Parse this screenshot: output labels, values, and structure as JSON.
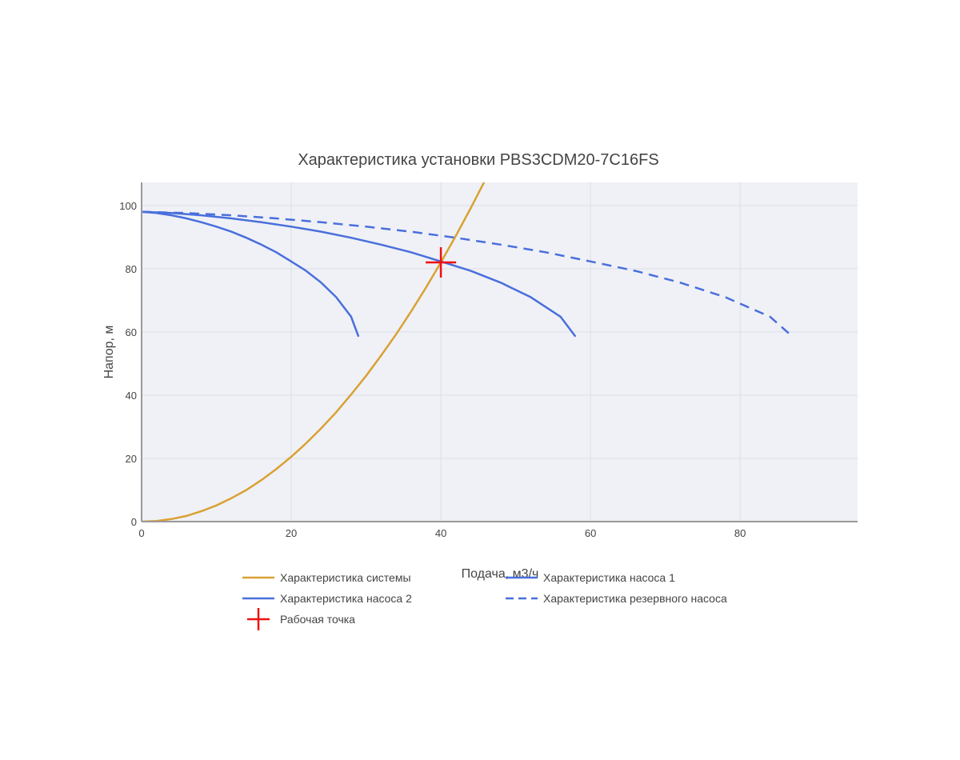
{
  "chart_data": {
    "type": "line",
    "title": "Характеристика установки PBS3CDM20-7C16FS",
    "xlabel": "Подача, м3/ч",
    "ylabel": "Напор, м",
    "xlim": [
      0,
      95.7
    ],
    "ylim": [
      0,
      107.3
    ],
    "xticks": [
      0,
      20,
      40,
      60,
      80
    ],
    "yticks": [
      0,
      20,
      40,
      60,
      80,
      100
    ],
    "grid": true,
    "legend_position": "bottom",
    "series": [
      {
        "name": "Характеристика системы",
        "color": "#DAA133",
        "dash": "solid",
        "x": [
          0,
          2,
          4,
          6,
          8,
          10,
          12,
          14,
          16,
          18,
          20,
          22,
          24,
          26,
          28,
          30,
          32,
          34,
          36,
          38,
          40,
          42,
          44,
          46
        ],
        "y": [
          0,
          0.2,
          0.8,
          1.8,
          3.3,
          5.1,
          7.4,
          10,
          13.1,
          16.6,
          20.5,
          24.8,
          29.5,
          34.6,
          40.2,
          46.1,
          52.5,
          59.2,
          66.4,
          74,
          82,
          90.4,
          99.2,
          108.4
        ]
      },
      {
        "name": "Характеристика насоса 1",
        "color": "#4A6FDC",
        "dash": "solid",
        "x": [
          0,
          2,
          4,
          6,
          8,
          10,
          12,
          14,
          16,
          18,
          20,
          22,
          24,
          26,
          28,
          29
        ],
        "y": [
          98,
          97.6,
          96.9,
          95.9,
          94.7,
          93.3,
          91.7,
          89.8,
          87.6,
          85.2,
          82.3,
          79.3,
          75.6,
          71,
          64.8,
          58.5
        ]
      },
      {
        "name": "Характеристика насоса 2",
        "color": "#4A6FDC",
        "dash": "solid",
        "x": [
          0,
          4,
          8,
          12,
          16,
          20,
          24,
          28,
          32,
          36,
          40,
          44,
          48,
          52,
          56,
          58
        ],
        "y": [
          98,
          97.6,
          96.9,
          95.9,
          94.7,
          93.3,
          91.7,
          89.8,
          87.6,
          85.2,
          82.3,
          79.3,
          75.6,
          71,
          64.8,
          58.5
        ]
      },
      {
        "name": "Характеристика резервного насоса",
        "color": "#4A6FDC",
        "dash": "dash",
        "x": [
          0,
          6,
          12,
          18,
          24,
          30,
          36,
          42,
          48,
          54,
          60,
          66,
          72,
          78,
          84,
          87
        ],
        "y": [
          98,
          97.6,
          96.9,
          95.9,
          94.7,
          93.3,
          91.7,
          89.8,
          87.6,
          85.2,
          82.3,
          79.3,
          75.6,
          71,
          64.8,
          58.5
        ]
      },
      {
        "name": "Рабочая точка",
        "color": "#EE1111",
        "marker": "cross",
        "x": [
          40
        ],
        "y": [
          82
        ]
      }
    ]
  }
}
